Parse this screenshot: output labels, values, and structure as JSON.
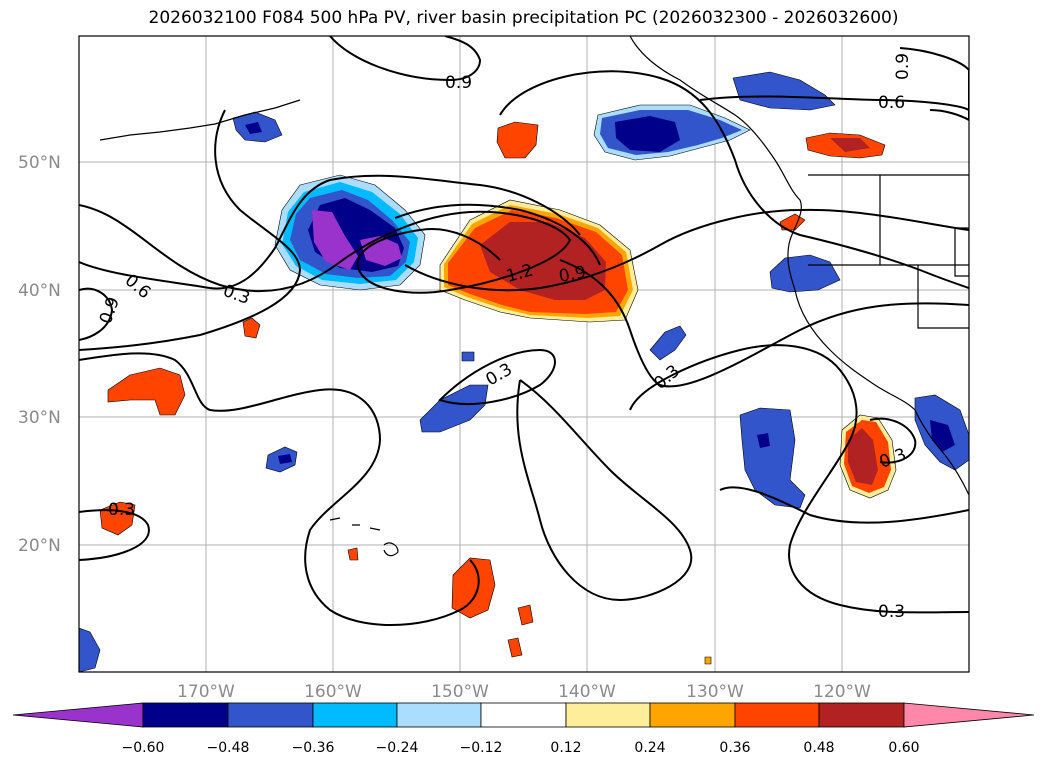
{
  "title": "2026032100 F084 500 hPa PV, river basin precipitation PC (2026032300 - 2026032600)",
  "latitude_labels": [
    "50°N",
    "40°N",
    "30°N",
    "20°N"
  ],
  "longitude_labels": [
    "170°W",
    "160°W",
    "150°W",
    "140°W",
    "130°W",
    "120°W"
  ],
  "colorbar": {
    "tick_labels": [
      "-0.60",
      "-0.48",
      "-0.36",
      "-0.24",
      "-0.12",
      "0.12",
      "0.24",
      "0.36",
      "0.48",
      "0.60"
    ],
    "colors": [
      "#9933cc",
      "#00008b",
      "#3355cc",
      "#00bbff",
      "#aaddff",
      "#ffffff",
      "#ffee99",
      "#ffa500",
      "#ff4400",
      "#b22222",
      "#ff88aa"
    ]
  },
  "contour_labels": [
    "0.9",
    "0.6",
    "0.9",
    "0.6",
    "0.9",
    "0.3",
    "1.2",
    "0.9",
    "0.3",
    "0.3",
    "0.3",
    "0.3",
    "0.3"
  ],
  "colors": {
    "purple": "#9933cc",
    "navy": "#00008b",
    "blue": "#3355cc",
    "cyan": "#00bbff",
    "lightblue": "#aaddff",
    "yellow": "#ffee99",
    "orange": "#ffa500",
    "redorange": "#ff4400",
    "darkred": "#b22222",
    "pink": "#ff88aa"
  }
}
